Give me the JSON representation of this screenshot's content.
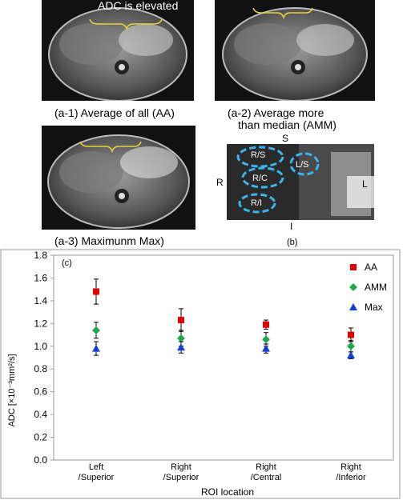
{
  "images": {
    "a1": {
      "caption": "(a-1) Average of all (AA)",
      "annotation": "ADC is elevated"
    },
    "a2": {
      "caption_line1": "(a-2) Average more",
      "caption_line2": "than median (AMM)"
    },
    "a3": {
      "caption": "(a-3) Maximunm Max)"
    },
    "b": {
      "caption": "(b)",
      "dir_s": "S",
      "dir_r": "R",
      "dir_l": "L",
      "dir_i": "I",
      "rois": [
        "R/S",
        "L/S",
        "R/C",
        "R/I"
      ]
    }
  },
  "chart_data": {
    "type": "scatter",
    "panel_label": "(c)",
    "categories": [
      "Left\n/Superior",
      "Right\n/Superior",
      "Right\n/Central",
      "Right\n/Inferior"
    ],
    "category_lines": [
      [
        "Left",
        "/Superior"
      ],
      [
        "Right",
        "/Superior"
      ],
      [
        "Right",
        "/Central"
      ],
      [
        "Right",
        "/Inferior"
      ]
    ],
    "xlabel": "ROI location",
    "ylabel": "ADC [×10⁻³mm²/s]",
    "ylim": [
      0,
      1.8
    ],
    "yticks": [
      "0.0",
      "0.2",
      "0.4",
      "0.6",
      "0.8",
      "1.0",
      "1.2",
      "1.4",
      "1.6",
      "1.8"
    ],
    "grid": false,
    "legend_position": "top-right",
    "series": [
      {
        "name": "AA",
        "color": "#e00000",
        "marker": "square",
        "values": [
          1.48,
          1.23,
          1.19,
          1.1
        ],
        "err": [
          0.11,
          0.1,
          0.04,
          0.06
        ]
      },
      {
        "name": "AMM",
        "color": "#1fa84a",
        "marker": "diamond",
        "values": [
          1.14,
          1.07,
          1.06,
          1.0
        ],
        "err": [
          0.07,
          0.07,
          0.06,
          0.05
        ]
      },
      {
        "name": "Max",
        "color": "#1040d0",
        "marker": "triangle",
        "values": [
          0.98,
          0.99,
          0.98,
          0.92
        ],
        "err": [
          0.06,
          0.05,
          0.04,
          0.03
        ]
      }
    ]
  }
}
